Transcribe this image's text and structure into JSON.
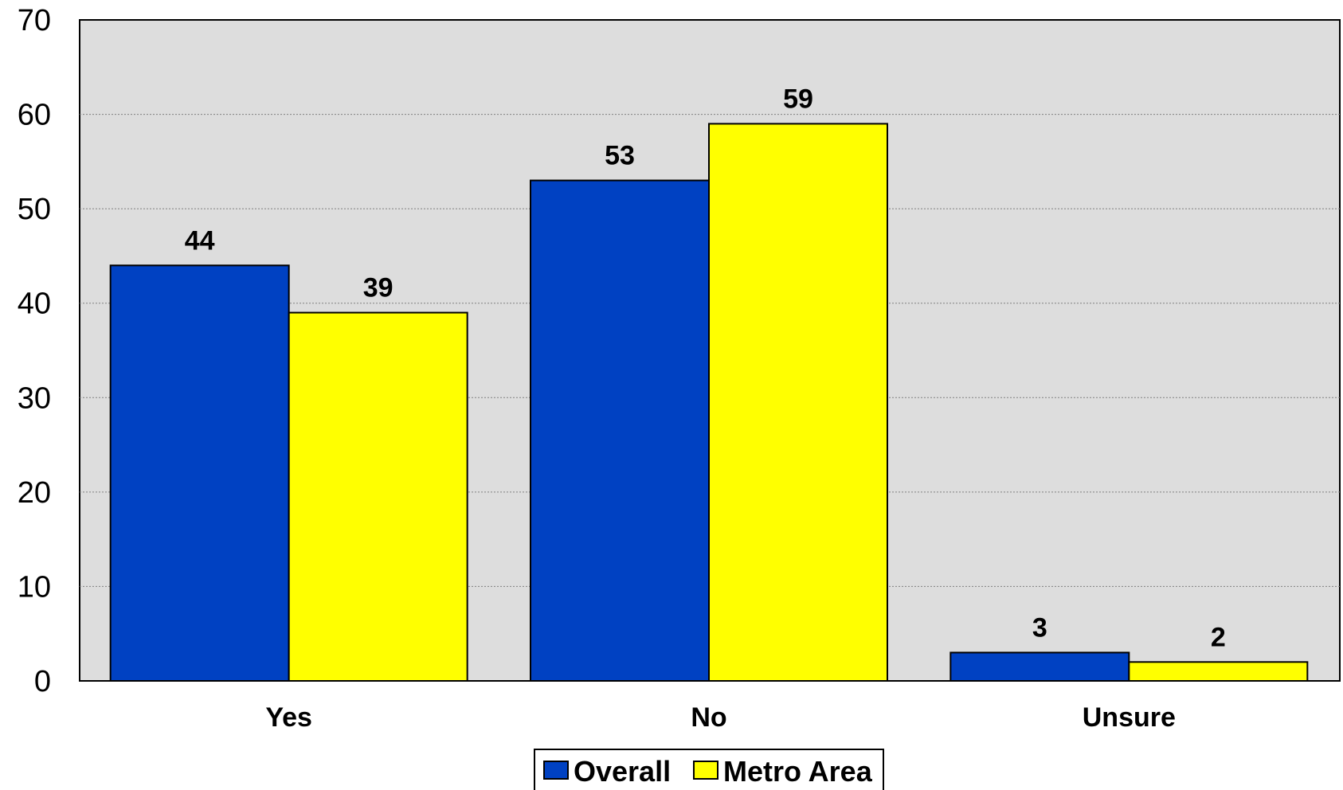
{
  "chart_data": {
    "type": "bar",
    "categories": [
      "Yes",
      "No",
      "Unsure"
    ],
    "series": [
      {
        "name": "Overall",
        "values": [
          44,
          53,
          3
        ],
        "color": "#0041C2"
      },
      {
        "name": "Metro Area",
        "values": [
          39,
          59,
          2
        ],
        "color": "#FFFF00"
      }
    ],
    "title": "",
    "xlabel": "",
    "ylabel": "",
    "ylim": [
      0,
      70
    ],
    "yticks": [
      0,
      10,
      20,
      30,
      40,
      50,
      60,
      70
    ],
    "grid": true,
    "legend_position": "bottom-center",
    "plot_background": "#DDDDDD"
  }
}
